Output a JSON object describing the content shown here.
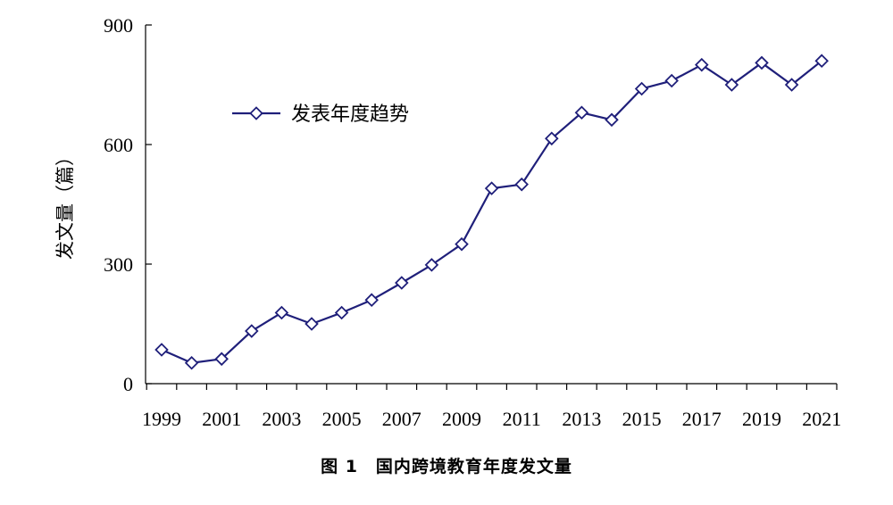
{
  "caption": "图 1　国内跨境教育年度发文量",
  "chart_data": {
    "type": "line",
    "title": "",
    "xlabel": "",
    "ylabel": "发文量（篇）",
    "x": [
      1999,
      2000,
      2001,
      2002,
      2003,
      2004,
      2005,
      2006,
      2007,
      2008,
      2009,
      2010,
      2011,
      2012,
      2013,
      2014,
      2015,
      2016,
      2017,
      2018,
      2019,
      2020,
      2021
    ],
    "x_tick_labels": [
      "1999",
      "2001",
      "2003",
      "2005",
      "2007",
      "2009",
      "2011",
      "2013",
      "2015",
      "2017",
      "2019",
      "2021"
    ],
    "y_tick_labels": [
      "0",
      "300",
      "600",
      "900"
    ],
    "ylim": [
      0,
      900
    ],
    "grid": false,
    "legend_position": "top-left",
    "series": [
      {
        "name": "发表年度趋势",
        "color": "#1f1f7a",
        "marker": "diamond",
        "values": [
          85,
          52,
          62,
          132,
          178,
          150,
          178,
          210,
          253,
          298,
          350,
          490,
          500,
          615,
          680,
          662,
          740,
          760,
          800,
          750,
          805,
          750,
          810
        ]
      }
    ]
  }
}
